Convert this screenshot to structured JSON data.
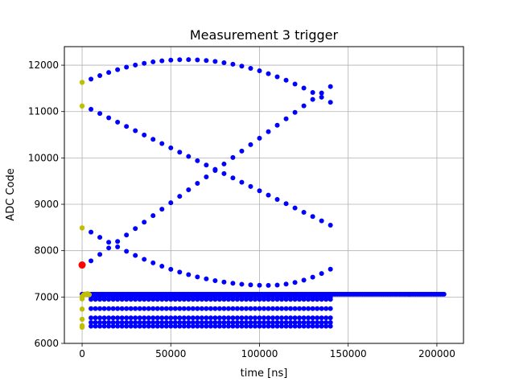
{
  "chart_data": {
    "type": "scatter",
    "title": "Measurement 3 trigger",
    "xlabel": "time [ns]",
    "ylabel": "ADC Code",
    "xlim": [
      -10000,
      215000
    ],
    "ylim": [
      6000,
      12400
    ],
    "grid": true,
    "x_ticks": [
      0,
      50000,
      100000,
      150000,
      200000
    ],
    "x_tick_labels": [
      "0",
      "50000",
      "100000",
      "150000",
      "200000"
    ],
    "y_ticks": [
      6000,
      7000,
      8000,
      9000,
      10000,
      11000,
      12000
    ],
    "y_tick_labels": [
      "6000",
      "7000",
      "8000",
      "9000",
      "10000",
      "11000",
      "12000"
    ],
    "colors": {
      "blue": "#0000ff",
      "olive": "#bfbf00",
      "red": "#ff0000"
    },
    "series": [
      {
        "color": "blue",
        "curves": [
          {
            "x_start": 5000,
            "x_end": 140000,
            "step": 5000,
            "y_start": 11700,
            "y_peak": 12120,
            "x_peak": 58000,
            "y_end": 11200,
            "shape": "arc"
          },
          {
            "x_start": 5000,
            "x_end": 140000,
            "step": 5000,
            "y_start": 11050,
            "y_end": 8550,
            "shape": "line"
          },
          {
            "x_start": 5000,
            "x_end": 140000,
            "step": 5000,
            "y_start": 7780,
            "y_end": 11540,
            "shape": "line"
          },
          {
            "x_start": 5000,
            "x_end": 140000,
            "step": 5000,
            "y_start": 8400,
            "y_min": 7250,
            "x_min": 105000,
            "y_end": 7600,
            "shape": "valley"
          }
        ],
        "bands": [
          {
            "y": 7060,
            "x_start": 0,
            "x_end": 204000,
            "density": "dense"
          },
          {
            "y": 7000,
            "x_start": 5000,
            "x_end": 140000,
            "density": "sparse"
          },
          {
            "y": 6950,
            "x_start": 5000,
            "x_end": 140000,
            "density": "sparse"
          },
          {
            "y": 6750,
            "x_start": 5000,
            "x_end": 140000,
            "density": "sparse"
          },
          {
            "y": 6550,
            "x_start": 5000,
            "x_end": 140000,
            "density": "sparse"
          },
          {
            "y": 6450,
            "x_start": 5000,
            "x_end": 140000,
            "density": "sparse"
          },
          {
            "y": 6370,
            "x_start": 5000,
            "x_end": 140000,
            "density": "sparse"
          }
        ]
      },
      {
        "color": "olive",
        "points": [
          [
            0,
            11630
          ],
          [
            0,
            11120
          ],
          [
            0,
            8490
          ],
          [
            0,
            6960
          ],
          [
            0,
            7010
          ],
          [
            1000,
            7050
          ],
          [
            2000,
            7060
          ],
          [
            3000,
            7070
          ],
          [
            4000,
            7050
          ],
          [
            0,
            6740
          ],
          [
            0,
            6520
          ],
          [
            0,
            6380
          ],
          [
            0,
            6350
          ]
        ]
      },
      {
        "color": "red",
        "points": [
          [
            0,
            7690
          ]
        ]
      }
    ]
  }
}
